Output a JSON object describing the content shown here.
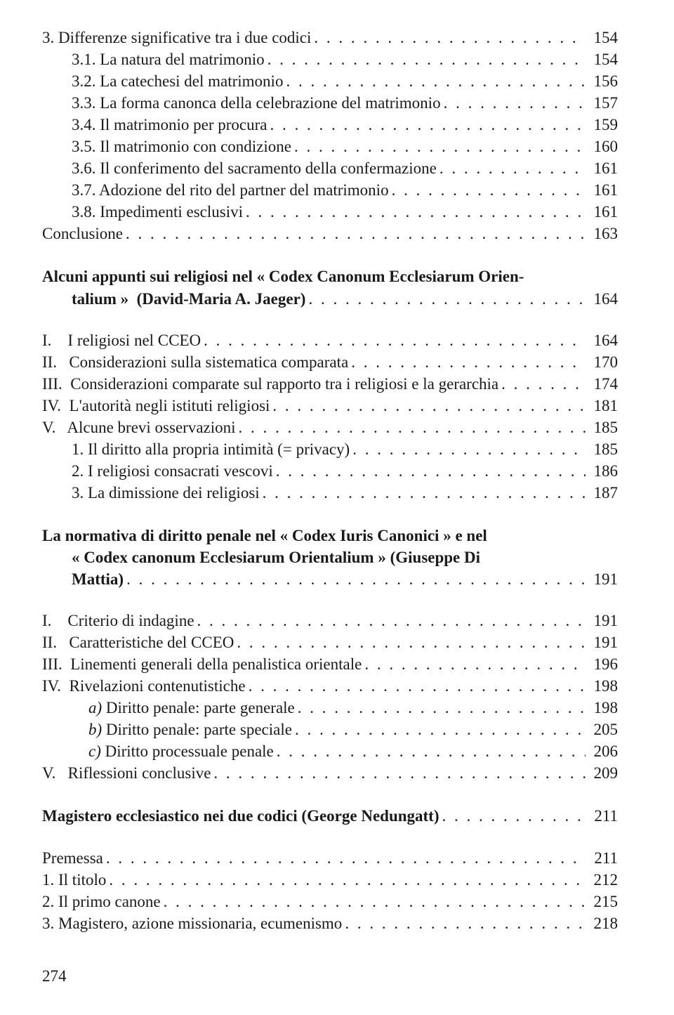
{
  "blocks": [
    {
      "type": "entry",
      "indent": 0,
      "label": "3. Differenze significative tra i due codici",
      "page": "154"
    },
    {
      "type": "entry",
      "indent": 1,
      "label": "3.1. La natura del matrimonio",
      "page": "154"
    },
    {
      "type": "entry",
      "indent": 1,
      "label": "3.2. La catechesi del matrimonio",
      "page": "156"
    },
    {
      "type": "entry",
      "indent": 1,
      "label": "3.3. La forma canonca della celebrazione del matrimonio",
      "page": "157"
    },
    {
      "type": "entry",
      "indent": 1,
      "label": "3.4. Il matrimonio per procura",
      "page": "159"
    },
    {
      "type": "entry",
      "indent": 1,
      "label": "3.5. Il matrimonio con condizione",
      "page": "160"
    },
    {
      "type": "entry",
      "indent": 1,
      "label": "3.6. Il conferimento del sacramento della confermazione",
      "page": "161"
    },
    {
      "type": "entry",
      "indent": 1,
      "label": "3.7. Adozione del rito del partner del matrimonio",
      "page": "161"
    },
    {
      "type": "entry",
      "indent": 1,
      "label": "3.8. Impedimenti esclusivi",
      "page": "161"
    },
    {
      "type": "entry",
      "indent": 0,
      "label": "Conclusione",
      "page": "163"
    },
    {
      "type": "section2",
      "line1": "Alcuni appunti sui religiosi nel « Codex Canonum Ecclesiarum Orien-",
      "line2_label": "talium »  (David-Maria A. Jaeger)",
      "page": "164"
    },
    {
      "type": "entry",
      "indent": 0,
      "label": "I.    I religiosi nel CCEO",
      "page": "164"
    },
    {
      "type": "entry",
      "indent": 0,
      "label": "II.   Considerazioni sulla sistematica comparata",
      "page": "170"
    },
    {
      "type": "entry",
      "indent": 0,
      "label": "III.  Considerazioni comparate sul rapporto tra i religiosi e la gerarchia",
      "page": "174"
    },
    {
      "type": "entry",
      "indent": 0,
      "label": "IV.  L'autorità negli istituti religiosi",
      "page": "181"
    },
    {
      "type": "entry",
      "indent": 0,
      "label": "V.   Alcune brevi osservazioni",
      "page": "185"
    },
    {
      "type": "entry",
      "indent": 1,
      "label": "1. Il diritto alla propria intimità (= privacy)",
      "page": "185"
    },
    {
      "type": "entry",
      "indent": 1,
      "label": "2. I religiosi consacrati vescovi",
      "page": "186"
    },
    {
      "type": "entry",
      "indent": 1,
      "label": "3. La dimissione dei religiosi",
      "page": "187"
    },
    {
      "type": "section3",
      "line1": "La normativa di diritto penale nel « Codex Iuris Canonici » e nel",
      "line2": "« Codex  canonum  Ecclesiarum  Orientalium »  (Giuseppe  Di",
      "line3_label": "Mattia)",
      "page": "191"
    },
    {
      "type": "entry",
      "indent": 0,
      "label": "I.    Criterio di indagine",
      "page": "191"
    },
    {
      "type": "entry",
      "indent": 0,
      "label": "II.   Caratteristiche del CCEO",
      "page": "191"
    },
    {
      "type": "entry",
      "indent": 0,
      "label": "III.  Linementi generali della penalistica orientale",
      "page": "196"
    },
    {
      "type": "entry",
      "indent": 0,
      "label": "IV.  Rivelazioni contenutistiche",
      "page": "198"
    },
    {
      "type": "entry_italic",
      "indent": 2,
      "prefix": "a) ",
      "label": "Diritto penale: parte generale",
      "page": "198"
    },
    {
      "type": "entry_italic",
      "indent": 2,
      "prefix": "b) ",
      "label": "Diritto penale: parte speciale",
      "page": "205"
    },
    {
      "type": "entry_italic",
      "indent": 2,
      "prefix": "c) ",
      "label": "Diritto processuale penale",
      "page": "206"
    },
    {
      "type": "entry",
      "indent": 0,
      "label": "V.   Riflessioni conclusive",
      "page": "209"
    },
    {
      "type": "section1",
      "label": "Magistero ecclesiastico nei due codici (George Nedungatt)",
      "page": "211"
    },
    {
      "type": "entry",
      "indent": 0,
      "label": "Premessa",
      "page": "211"
    },
    {
      "type": "entry",
      "indent": 0,
      "label": "1. Il titolo",
      "page": "212"
    },
    {
      "type": "entry",
      "indent": 0,
      "label": "2. Il primo canone",
      "page": "215"
    },
    {
      "type": "entry",
      "indent": 0,
      "label": "3. Magistero, azione missionaria, ecumenismo",
      "page": "218"
    }
  ],
  "page_number": "274"
}
